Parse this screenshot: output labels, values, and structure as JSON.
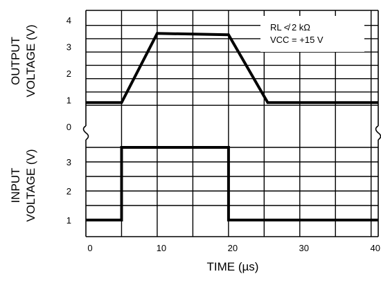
{
  "chart_data": [
    {
      "type": "line",
      "ylabel": [
        "OUTPUT",
        "VOLTAGE (V)"
      ],
      "yticks": [
        0,
        1,
        2,
        3,
        4
      ],
      "x": [
        0,
        5,
        10,
        20,
        25.5,
        41
      ],
      "series": [
        {
          "values": [
            0.9,
            0.9,
            3.5,
            3.45,
            0.9,
            0.9
          ]
        }
      ],
      "annotations": [
        "RL ≮ 2 kΩ",
        "VCC = +15 V"
      ],
      "grid": true
    },
    {
      "type": "line",
      "ylabel": [
        "INPUT",
        "VOLTAGE (V)"
      ],
      "yticks": [
        1,
        2,
        3
      ],
      "x": [
        0,
        5,
        5,
        20,
        20,
        41
      ],
      "series": [
        {
          "values": [
            1,
            1,
            3.5,
            3.5,
            1,
            1
          ]
        }
      ],
      "grid": true
    }
  ],
  "shared_x": {
    "label": "TIME (µs)",
    "ticks": [
      0,
      10,
      20,
      30,
      40
    ],
    "xlim": [
      0,
      41
    ]
  }
}
